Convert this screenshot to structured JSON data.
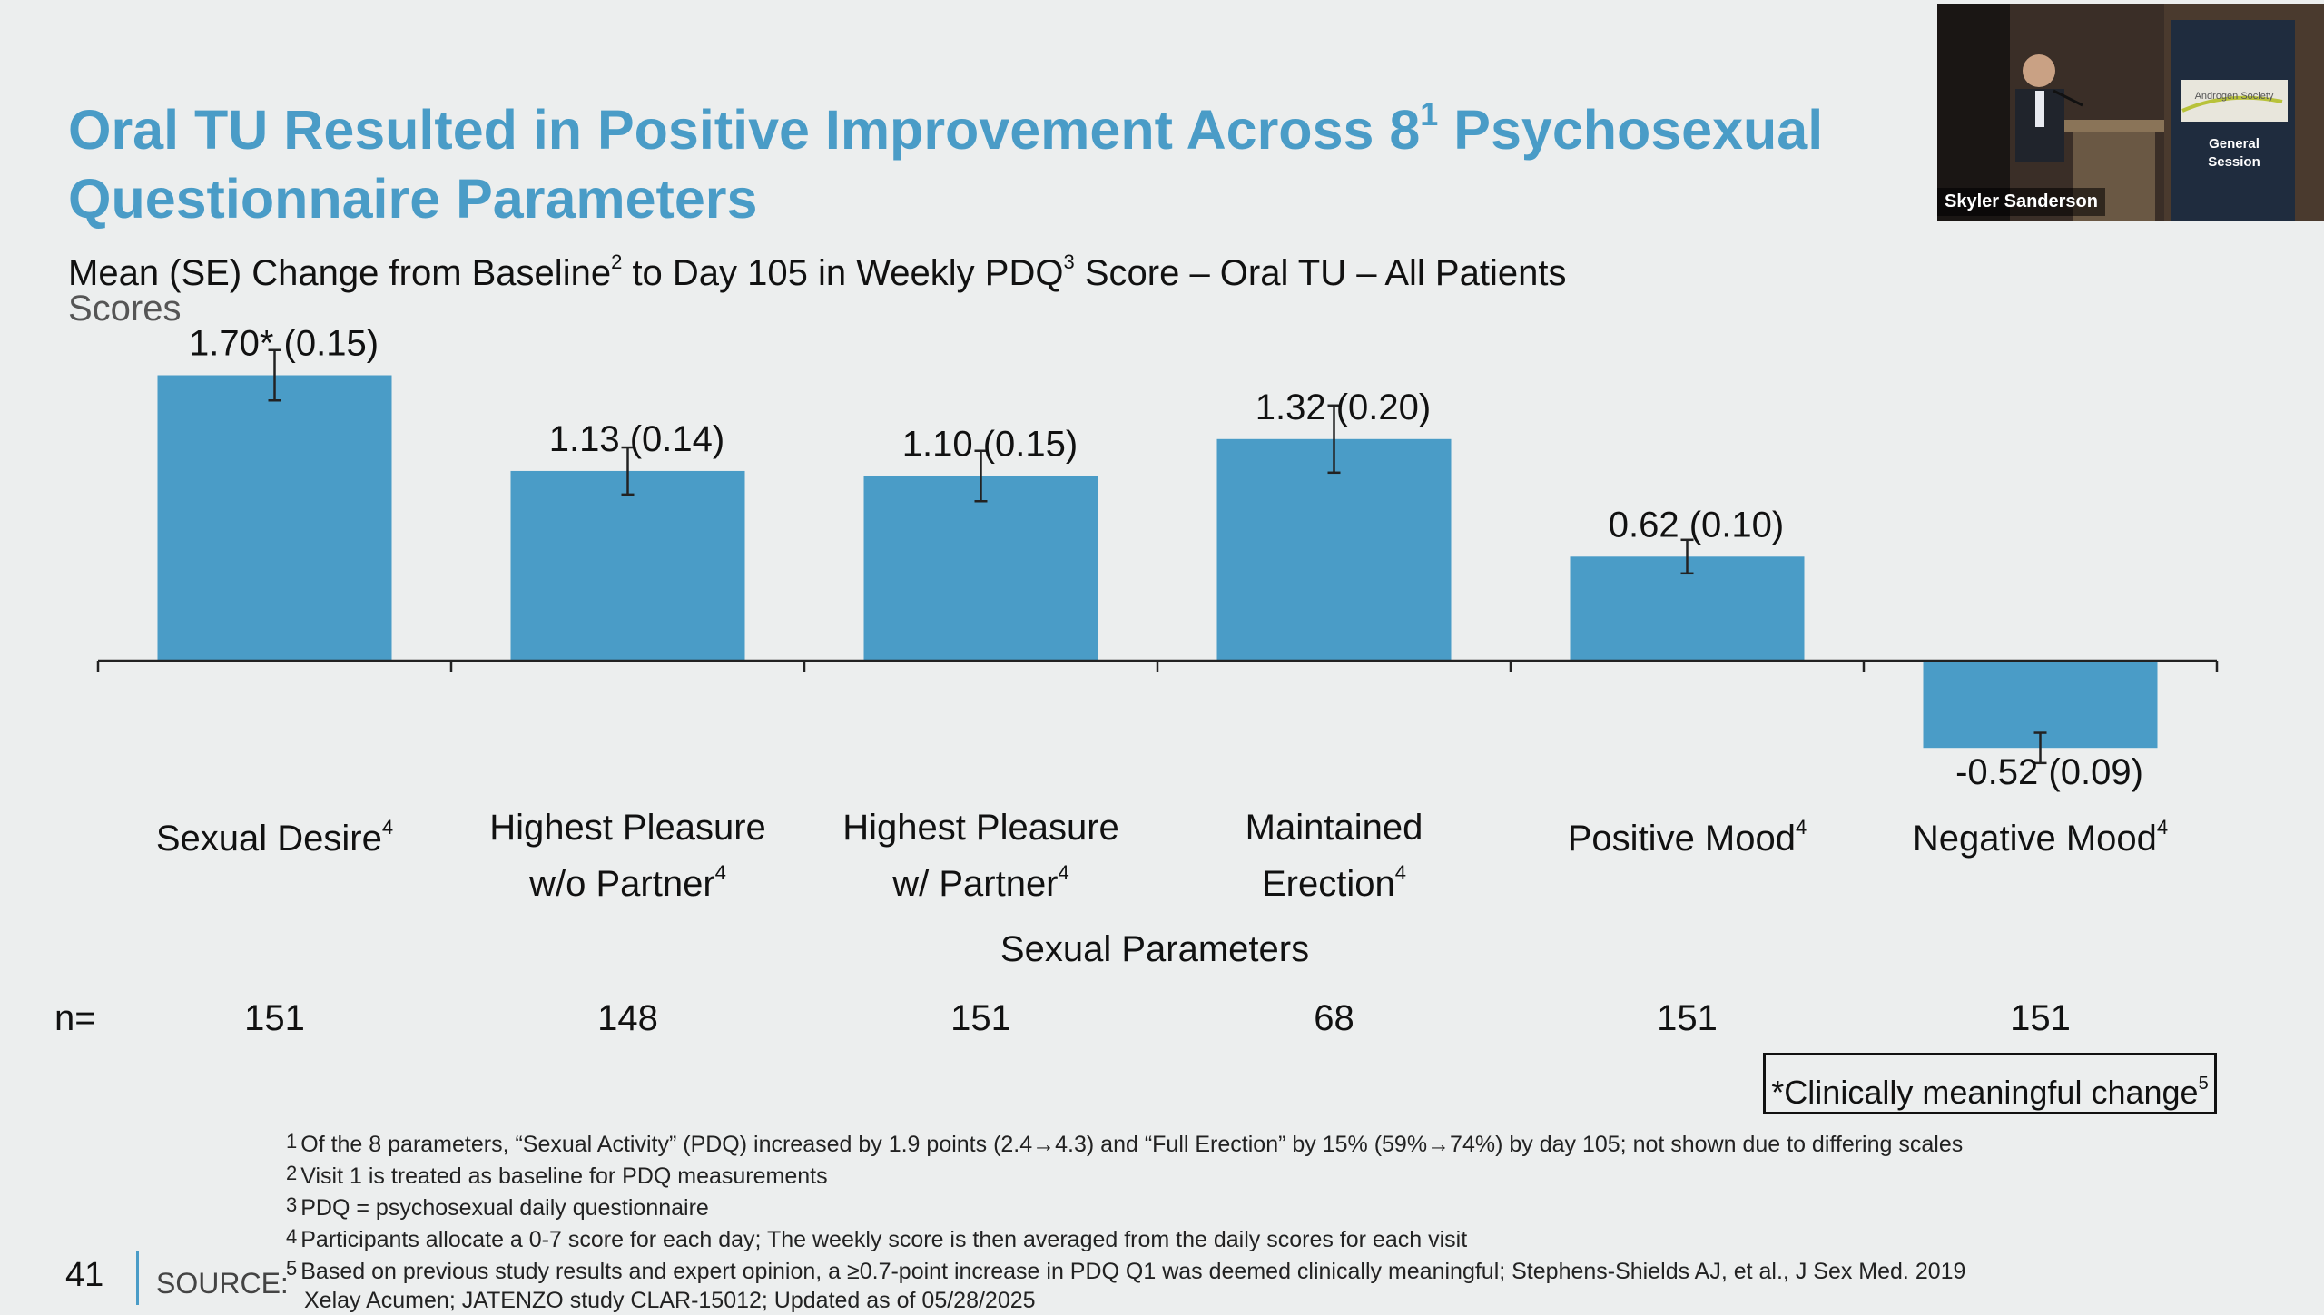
{
  "title": {
    "line1_pre": "Oral TU Resulted in Positive Improvement Across 8",
    "line1_sup": "1",
    "line1_post": " Psychosexual",
    "line2": "Questionnaire Parameters"
  },
  "subtitle": {
    "part1": "Mean (SE) Change from Baseline",
    "sup1": "2",
    "part2": " to Day 105 in Weekly PDQ",
    "sup2": "3",
    "part3": " Score – Oral TU – All Patients"
  },
  "colors": {
    "accent": "#4a9cc7",
    "bar": "#4a9cc7",
    "background": "#eceeee"
  },
  "chart_data": {
    "type": "bar",
    "title": "Mean (SE) Change from Baseline to Day 105 in Weekly PDQ Score – Oral TU – All Patients",
    "ylabel": "Scores",
    "xlabel": "Sexual Parameters",
    "ylim": [
      -0.7,
      1.9
    ],
    "grid": false,
    "categories": [
      {
        "line1": "Sexual Desire",
        "line2": "",
        "sup": "4"
      },
      {
        "line1": "Highest Pleasure",
        "line2": "w/o Partner",
        "sup": "4"
      },
      {
        "line1": "Highest Pleasure",
        "line2": "w/ Partner",
        "sup": "4"
      },
      {
        "line1": "Maintained",
        "line2": "Erection",
        "sup": "4"
      },
      {
        "line1": "Positive Mood",
        "line2": "",
        "sup": "4"
      },
      {
        "line1": "Negative Mood",
        "line2": "",
        "sup": "4"
      }
    ],
    "values": [
      1.7,
      1.13,
      1.1,
      1.32,
      0.62,
      -0.52
    ],
    "se": [
      0.15,
      0.14,
      0.15,
      0.2,
      0.1,
      0.09
    ],
    "labels": [
      "1.70* (0.15)",
      "1.13 (0.14)",
      "1.10 (0.15)",
      "1.32 (0.20)",
      "0.62 (0.10)",
      "-0.52 (0.09)"
    ]
  },
  "n": {
    "label": "n=",
    "values": [
      "151",
      "148",
      "151",
      "68",
      "151",
      "151"
    ]
  },
  "clinical_note": {
    "text": "*Clinically meaningful change",
    "sup": "5"
  },
  "footnotes": [
    {
      "num": "1",
      "text": "Of the 8 parameters, “Sexual Activity” (PDQ) increased by 1.9 points (2.4→4.3) and “Full Erection” by 15% (59%→74%) by day 105; not shown due to differing scales"
    },
    {
      "num": "2",
      "text": "Visit 1 is treated as baseline for PDQ measurements"
    },
    {
      "num": "3",
      "text": "PDQ = psychosexual daily questionnaire"
    },
    {
      "num": "4",
      "text": "Participants allocate a 0-7 score for each day; The weekly score is then averaged from the daily scores for each visit"
    },
    {
      "num": "5",
      "text": "Based on previous study results and expert opinion, a ≥0.7-point increase in PDQ Q1 was deemed clinically meaningful; Stephens-Shields AJ, et al., J Sex Med. 2019"
    },
    {
      "num": "",
      "text": "Xelay Acumen; JATENZO study CLAR-15012; Updated as of 05/28/2025"
    }
  ],
  "page_number": "41",
  "source_label": "SOURCE:",
  "video": {
    "speaker_name": "Skyler Sanderson",
    "banner_line1": "General",
    "banner_line2": "Session",
    "banner_logo": "Androgen Society"
  }
}
